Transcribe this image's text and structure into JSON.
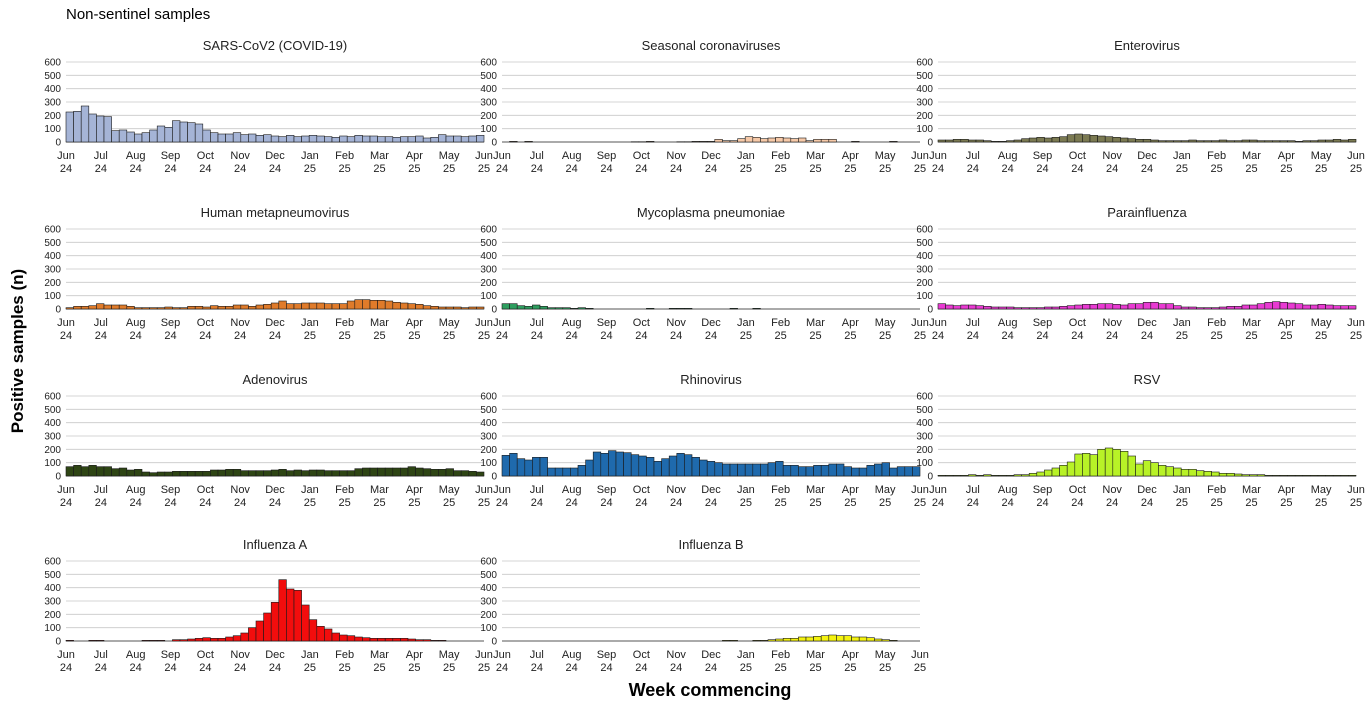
{
  "page": {
    "title": "Non-sentinel samples",
    "ylabel": "Positive samples (n)",
    "xlabel": "Week commencing"
  },
  "chart_data": {
    "type": "bar",
    "y_ticks": [
      0,
      100,
      200,
      300,
      400,
      500,
      600
    ],
    "ylim": [
      0,
      620
    ],
    "grid": "horizontal",
    "x_tick_labels": [
      [
        "Jun",
        "24"
      ],
      [
        "Jul",
        "24"
      ],
      [
        "Aug",
        "24"
      ],
      [
        "Sep",
        "24"
      ],
      [
        "Oct",
        "24"
      ],
      [
        "Nov",
        "24"
      ],
      [
        "Dec",
        "24"
      ],
      [
        "Jan",
        "25"
      ],
      [
        "Feb",
        "25"
      ],
      [
        "Mar",
        "25"
      ],
      [
        "Apr",
        "25"
      ],
      [
        "May",
        "25"
      ],
      [
        "Jun",
        "25"
      ]
    ],
    "panels": [
      {
        "title": "SARS-CoV2 (COVID-19)",
        "color": "#a5b4d6",
        "values": [
          225,
          230,
          270,
          210,
          195,
          190,
          85,
          90,
          75,
          60,
          70,
          90,
          120,
          110,
          160,
          150,
          145,
          135,
          90,
          70,
          60,
          60,
          70,
          55,
          60,
          50,
          55,
          45,
          40,
          50,
          40,
          45,
          50,
          45,
          40,
          35,
          45,
          40,
          50,
          45,
          45,
          40,
          40,
          35,
          40,
          40,
          45,
          30,
          35,
          55,
          45,
          45,
          40,
          45,
          50
        ]
      },
      {
        "title": "Seasonal coronaviruses",
        "color": "#f6c9a8",
        "values": [
          0,
          5,
          0,
          5,
          0,
          0,
          0,
          0,
          0,
          0,
          0,
          0,
          0,
          0,
          0,
          0,
          0,
          2,
          2,
          5,
          0,
          0,
          0,
          2,
          2,
          5,
          5,
          5,
          20,
          10,
          10,
          25,
          40,
          35,
          25,
          30,
          35,
          30,
          25,
          30,
          10,
          20,
          20,
          20,
          0,
          0,
          5,
          0,
          0,
          0,
          0,
          5,
          0,
          0,
          0
        ]
      },
      {
        "title": "Enterovirus",
        "color": "#7b7a52",
        "values": [
          15,
          15,
          20,
          20,
          15,
          15,
          10,
          5,
          5,
          10,
          15,
          25,
          30,
          35,
          30,
          35,
          40,
          55,
          60,
          55,
          50,
          45,
          40,
          35,
          30,
          25,
          20,
          20,
          15,
          10,
          10,
          10,
          10,
          15,
          10,
          10,
          10,
          15,
          10,
          10,
          15,
          15,
          10,
          10,
          10,
          10,
          10,
          5,
          10,
          10,
          15,
          15,
          20,
          15,
          20
        ]
      },
      {
        "title": "Human metapneumovirus",
        "color": "#e07b2a",
        "values": [
          10,
          20,
          20,
          25,
          40,
          30,
          30,
          30,
          20,
          10,
          10,
          10,
          10,
          15,
          10,
          10,
          20,
          20,
          15,
          25,
          20,
          20,
          30,
          30,
          20,
          30,
          35,
          45,
          60,
          40,
          40,
          45,
          45,
          45,
          40,
          40,
          40,
          60,
          70,
          70,
          65,
          65,
          60,
          50,
          45,
          40,
          35,
          25,
          20,
          15,
          15,
          15,
          10,
          15,
          15
        ]
      },
      {
        "title": "Mycoplasma pneumoniae",
        "color": "#2e9e5f",
        "values": [
          40,
          40,
          25,
          20,
          30,
          20,
          10,
          10,
          10,
          5,
          10,
          5,
          0,
          0,
          0,
          0,
          0,
          0,
          0,
          5,
          0,
          0,
          5,
          5,
          5,
          0,
          0,
          0,
          0,
          0,
          5,
          0,
          0,
          5,
          0,
          0,
          0,
          0,
          0,
          0,
          0,
          0,
          0,
          0,
          0,
          0,
          0,
          0,
          0,
          0,
          0,
          0,
          0,
          0,
          0
        ]
      },
      {
        "title": "Parainfluenza",
        "color": "#e83ad2",
        "values": [
          40,
          30,
          25,
          30,
          30,
          25,
          20,
          15,
          15,
          15,
          10,
          10,
          10,
          10,
          15,
          15,
          20,
          25,
          30,
          35,
          35,
          40,
          40,
          35,
          30,
          40,
          40,
          50,
          50,
          40,
          40,
          25,
          15,
          15,
          10,
          10,
          10,
          15,
          20,
          20,
          30,
          30,
          40,
          50,
          55,
          50,
          45,
          40,
          30,
          30,
          35,
          30,
          25,
          25,
          25
        ]
      },
      {
        "title": "Adenovirus",
        "color": "#2e4514",
        "values": [
          70,
          80,
          70,
          80,
          70,
          70,
          55,
          60,
          45,
          50,
          30,
          25,
          30,
          30,
          35,
          35,
          35,
          35,
          35,
          45,
          45,
          50,
          50,
          40,
          40,
          40,
          40,
          45,
          50,
          40,
          45,
          40,
          45,
          45,
          40,
          40,
          40,
          40,
          55,
          60,
          60,
          60,
          60,
          60,
          60,
          70,
          60,
          55,
          50,
          50,
          55,
          40,
          40,
          35,
          30
        ]
      },
      {
        "title": "Rhinovirus",
        "color": "#1f6aad",
        "values": [
          155,
          170,
          130,
          120,
          140,
          140,
          60,
          60,
          60,
          60,
          80,
          120,
          180,
          170,
          190,
          180,
          175,
          160,
          150,
          140,
          110,
          130,
          150,
          170,
          160,
          140,
          120,
          110,
          100,
          90,
          90,
          90,
          90,
          90,
          90,
          100,
          110,
          80,
          80,
          70,
          70,
          80,
          80,
          90,
          90,
          70,
          60,
          60,
          80,
          90,
          100,
          60,
          70,
          70,
          70
        ]
      },
      {
        "title": "RSV",
        "color": "#b8f227",
        "values": [
          5,
          5,
          5,
          5,
          10,
          5,
          10,
          5,
          5,
          5,
          10,
          10,
          20,
          30,
          45,
          60,
          80,
          105,
          165,
          170,
          160,
          200,
          210,
          200,
          185,
          150,
          90,
          115,
          100,
          80,
          70,
          60,
          50,
          50,
          40,
          35,
          30,
          20,
          20,
          15,
          10,
          10,
          10,
          5,
          5,
          5,
          5,
          5,
          5,
          5,
          5,
          5,
          5,
          5,
          5
        ]
      },
      {
        "title": "Influenza A",
        "color": "#f20d0d",
        "values": [
          5,
          0,
          0,
          5,
          5,
          0,
          0,
          0,
          0,
          0,
          5,
          5,
          5,
          0,
          10,
          10,
          15,
          20,
          25,
          20,
          20,
          30,
          40,
          60,
          100,
          150,
          210,
          290,
          460,
          390,
          380,
          270,
          160,
          110,
          90,
          60,
          45,
          40,
          30,
          25,
          20,
          20,
          20,
          20,
          20,
          15,
          10,
          10,
          5,
          5,
          0,
          0,
          0,
          0,
          0
        ]
      },
      {
        "title": "Influenza B",
        "color": "#f4f20f",
        "values": [
          0,
          0,
          0,
          0,
          0,
          0,
          0,
          0,
          0,
          0,
          0,
          0,
          0,
          0,
          0,
          0,
          0,
          0,
          0,
          0,
          0,
          0,
          0,
          0,
          0,
          0,
          0,
          0,
          0,
          5,
          5,
          0,
          0,
          5,
          5,
          10,
          15,
          20,
          20,
          30,
          30,
          35,
          40,
          45,
          40,
          40,
          30,
          30,
          25,
          15,
          10,
          5,
          0,
          0,
          0
        ]
      }
    ]
  }
}
